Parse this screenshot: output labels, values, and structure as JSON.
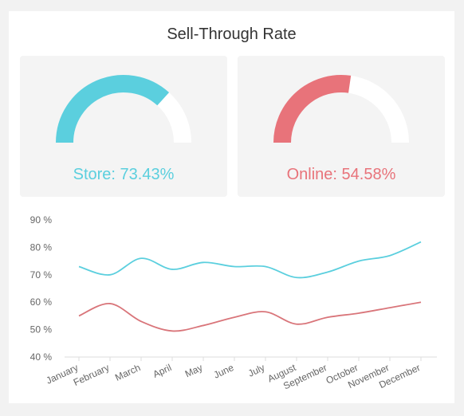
{
  "title": "Sell-Through Rate",
  "gauges": [
    {
      "label": "Store: 73.43%",
      "value": 73.43,
      "color": "#5bcfde",
      "track_color": "#ffffff"
    },
    {
      "label": "Online: 54.58%",
      "value": 54.58,
      "color": "#e8737a",
      "track_color": "#ffffff"
    }
  ],
  "chart_data": {
    "type": "line",
    "categories": [
      "January",
      "February",
      "March",
      "April",
      "May",
      "June",
      "July",
      "August",
      "September",
      "October",
      "November",
      "December"
    ],
    "series": [
      {
        "color": "#5bcfde",
        "values": [
          73,
          70,
          76,
          72,
          74.5,
          73,
          73,
          69,
          71,
          75,
          77,
          82
        ]
      },
      {
        "color": "#d9757a",
        "values": [
          55,
          59.5,
          53,
          49.5,
          51.5,
          54.5,
          56.5,
          52,
          54.5,
          56,
          58,
          60
        ]
      }
    ],
    "y_ticks": [
      "40 %",
      "50 %",
      "60 %",
      "70 %",
      "80 %",
      "90 %"
    ],
    "ylim": [
      40,
      90
    ],
    "grid": false
  }
}
